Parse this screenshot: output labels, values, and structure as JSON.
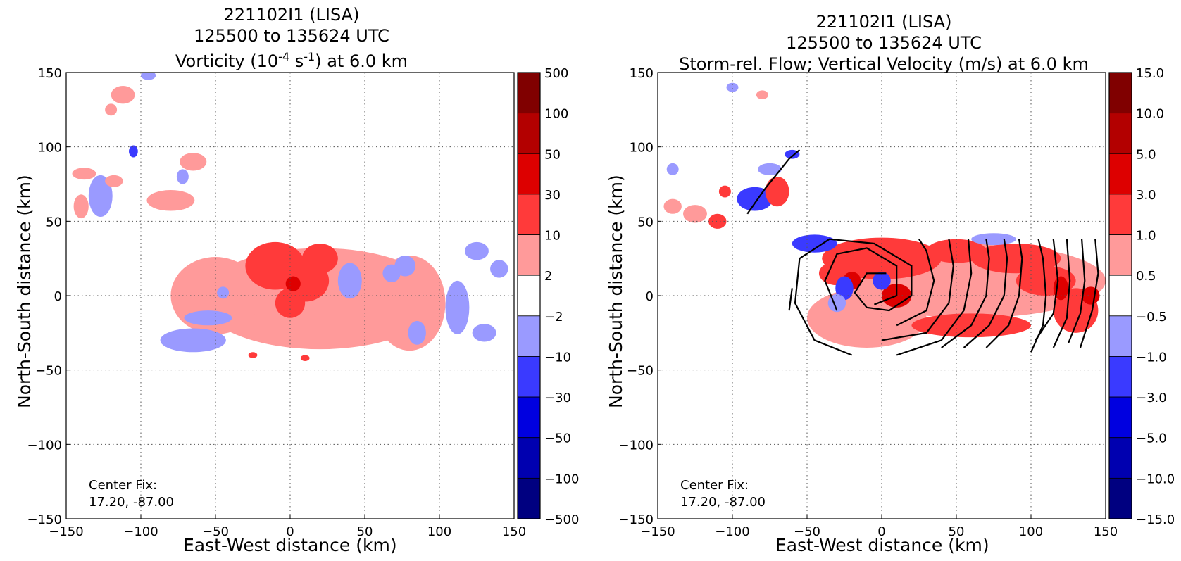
{
  "chart_data": [
    {
      "type": "heatmap",
      "title": [
        "221102I1 (LISA)",
        "125500 to 135624 UTC"
      ],
      "subtitle_parts": {
        "pre": "Vorticity (10",
        "exp1": "-4",
        "mid": " s",
        "exp2": "-1",
        "post": ") at 6.0 km"
      },
      "xlabel": "East-West distance (km)",
      "ylabel": "North-South distance (km)",
      "xlim": [
        -150,
        150
      ],
      "ylim": [
        -150,
        150
      ],
      "xticks": [
        "−150",
        "−100",
        "−50",
        "0",
        "50",
        "100",
        "150"
      ],
      "yticks": [
        "150",
        "100",
        "50",
        "0",
        "−50",
        "−100",
        "−150"
      ],
      "grid": true,
      "annotation": [
        "Center Fix:",
        "17.20, -87.00"
      ],
      "colorbar": {
        "levels": [
          "500",
          "100",
          "50",
          "30",
          "10",
          "2",
          "−2",
          "−10",
          "−30",
          "−50",
          "−100",
          "−500"
        ],
        "colors": [
          "#800000",
          "#b30000",
          "#dd0000",
          "#ff3a3a",
          "#ff9a9a",
          "#ffffff",
          "#9a9aff",
          "#3a3aff",
          "#0000e0",
          "#0000b0",
          "#000080"
        ]
      },
      "blobs": [
        {
          "x": -112,
          "y": 135,
          "rx": 8,
          "ry": 6,
          "c": 4
        },
        {
          "x": -95,
          "y": 148,
          "rx": 5,
          "ry": 3,
          "c": 6
        },
        {
          "x": -120,
          "y": 125,
          "rx": 4,
          "ry": 4,
          "c": 4
        },
        {
          "x": -105,
          "y": 97,
          "rx": 3,
          "ry": 4,
          "c": 7
        },
        {
          "x": -127,
          "y": 67,
          "rx": 8,
          "ry": 14,
          "c": 6
        },
        {
          "x": -140,
          "y": 60,
          "rx": 5,
          "ry": 8,
          "c": 4
        },
        {
          "x": -138,
          "y": 82,
          "rx": 8,
          "ry": 4,
          "c": 4
        },
        {
          "x": -118,
          "y": 77,
          "rx": 6,
          "ry": 4,
          "c": 4
        },
        {
          "x": -80,
          "y": 64,
          "rx": 16,
          "ry": 7,
          "c": 4
        },
        {
          "x": -65,
          "y": 90,
          "rx": 9,
          "ry": 6,
          "c": 4
        },
        {
          "x": -72,
          "y": 80,
          "rx": 4,
          "ry": 5,
          "c": 6
        },
        {
          "x": 20,
          "y": -2,
          "rx": 80,
          "ry": 34,
          "c": 4
        },
        {
          "x": -50,
          "y": 0,
          "rx": 30,
          "ry": 26,
          "c": 4
        },
        {
          "x": 80,
          "y": -5,
          "rx": 24,
          "ry": 32,
          "c": 4
        },
        {
          "x": -10,
          "y": 20,
          "rx": 20,
          "ry": 16,
          "c": 3
        },
        {
          "x": 10,
          "y": 10,
          "rx": 16,
          "ry": 14,
          "c": 3
        },
        {
          "x": 0,
          "y": -5,
          "rx": 10,
          "ry": 10,
          "c": 3
        },
        {
          "x": 20,
          "y": 25,
          "rx": 12,
          "ry": 10,
          "c": 3
        },
        {
          "x": 2,
          "y": 8,
          "rx": 5,
          "ry": 5,
          "c": 2
        },
        {
          "x": -65,
          "y": -30,
          "rx": 22,
          "ry": 8,
          "c": -1
        },
        {
          "x": -55,
          "y": -15,
          "rx": 16,
          "ry": 5,
          "c": -1
        },
        {
          "x": 40,
          "y": 10,
          "rx": 8,
          "ry": 12,
          "c": -1
        },
        {
          "x": 68,
          "y": 15,
          "rx": 6,
          "ry": 6,
          "c": -1
        },
        {
          "x": -45,
          "y": 2,
          "rx": 4,
          "ry": 4,
          "c": -1
        },
        {
          "x": 85,
          "y": -25,
          "rx": 6,
          "ry": 8,
          "c": -1
        },
        {
          "x": 112,
          "y": -8,
          "rx": 8,
          "ry": 18,
          "c": -1
        },
        {
          "x": 125,
          "y": 30,
          "rx": 8,
          "ry": 6,
          "c": -1
        },
        {
          "x": 140,
          "y": 18,
          "rx": 6,
          "ry": 6,
          "c": -1
        },
        {
          "x": 130,
          "y": -25,
          "rx": 8,
          "ry": 6,
          "c": -1
        },
        {
          "x": -70,
          "y": -30,
          "rx": 4,
          "ry": 4,
          "c": 6
        },
        {
          "x": 77,
          "y": 20,
          "rx": 7,
          "ry": 7,
          "c": 6
        },
        {
          "x": -25,
          "y": -40,
          "rx": 3,
          "ry": 2,
          "c": 3
        },
        {
          "x": 10,
          "y": -42,
          "rx": 3,
          "ry": 2,
          "c": 3
        }
      ]
    },
    {
      "type": "heatmap",
      "title": [
        "221102I1 (LISA)",
        "125500 to 135624 UTC",
        "Storm-rel. Flow; Vertical Velocity (m/s) at 6.0 km"
      ],
      "xlabel": "East-West distance (km)",
      "ylabel": "North-South distance (km)",
      "xlim": [
        -150,
        150
      ],
      "ylim": [
        -150,
        150
      ],
      "xticks": [
        "−150",
        "−100",
        "−50",
        "0",
        "50",
        "100",
        "150"
      ],
      "yticks": [
        "150",
        "100",
        "50",
        "0",
        "−50",
        "−100",
        "−150"
      ],
      "grid": true,
      "annotation": [
        "Center Fix:",
        "17.20, -87.00"
      ],
      "colorbar": {
        "levels": [
          "15.0",
          "10.0",
          "5.0",
          "3.0",
          "1.0",
          "0.5",
          "−0.5",
          "−1.0",
          "−3.0",
          "−5.0",
          "−10.0",
          "−15.0"
        ],
        "colors": [
          "#800000",
          "#b30000",
          "#dd0000",
          "#ff3a3a",
          "#ff9a9a",
          "#ffffff",
          "#9a9aff",
          "#3a3aff",
          "#0000e0",
          "#0000b0",
          "#000080"
        ]
      },
      "streamlines": true,
      "blobs": [
        {
          "x": 60,
          "y": 10,
          "rx": 90,
          "ry": 25,
          "c": 4
        },
        {
          "x": -10,
          "y": -15,
          "rx": 40,
          "ry": 20,
          "c": 4
        },
        {
          "x": 0,
          "y": 25,
          "rx": 40,
          "ry": 14,
          "c": 3
        },
        {
          "x": 50,
          "y": 30,
          "rx": 20,
          "ry": 8,
          "c": 3
        },
        {
          "x": 90,
          "y": 25,
          "rx": 30,
          "ry": 10,
          "c": 3
        },
        {
          "x": 110,
          "y": 10,
          "rx": 20,
          "ry": 10,
          "c": 3
        },
        {
          "x": 130,
          "y": -10,
          "rx": 15,
          "ry": 15,
          "c": 3
        },
        {
          "x": 60,
          "y": -20,
          "rx": 40,
          "ry": 8,
          "c": 3
        },
        {
          "x": -30,
          "y": 15,
          "rx": 12,
          "ry": 8,
          "c": 3
        },
        {
          "x": 10,
          "y": 0,
          "rx": 10,
          "ry": 8,
          "c": 2
        },
        {
          "x": 120,
          "y": 5,
          "rx": 5,
          "ry": 8,
          "c": 2
        },
        {
          "x": 140,
          "y": 0,
          "rx": 6,
          "ry": 6,
          "c": 2
        },
        {
          "x": -20,
          "y": 10,
          "rx": 6,
          "ry": 6,
          "c": 2
        },
        {
          "x": -25,
          "y": 5,
          "rx": 6,
          "ry": 8,
          "c": -2
        },
        {
          "x": 0,
          "y": 10,
          "rx": 6,
          "ry": 6,
          "c": -2
        },
        {
          "x": -85,
          "y": 65,
          "rx": 12,
          "ry": 8,
          "c": -2
        },
        {
          "x": -45,
          "y": 35,
          "rx": 15,
          "ry": 6,
          "c": -2
        },
        {
          "x": -75,
          "y": 85,
          "rx": 8,
          "ry": 4,
          "c": -1
        },
        {
          "x": -60,
          "y": 95,
          "rx": 5,
          "ry": 3,
          "c": -2
        },
        {
          "x": -110,
          "y": 50,
          "rx": 6,
          "ry": 5,
          "c": 3
        },
        {
          "x": -125,
          "y": 55,
          "rx": 8,
          "ry": 6,
          "c": 4
        },
        {
          "x": -140,
          "y": 60,
          "rx": 6,
          "ry": 5,
          "c": 4
        },
        {
          "x": -140,
          "y": 85,
          "rx": 4,
          "ry": 4,
          "c": -1
        },
        {
          "x": -100,
          "y": 140,
          "rx": 4,
          "ry": 3,
          "c": -1
        },
        {
          "x": -70,
          "y": 70,
          "rx": 8,
          "ry": 10,
          "c": 3
        },
        {
          "x": -105,
          "y": 70,
          "rx": 4,
          "ry": 4,
          "c": 3
        },
        {
          "x": -80,
          "y": 135,
          "rx": 4,
          "ry": 3,
          "c": 4
        },
        {
          "x": -30,
          "y": -5,
          "rx": 6,
          "ry": 6,
          "c": -1
        },
        {
          "x": 75,
          "y": 38,
          "rx": 15,
          "ry": 4,
          "c": -1
        }
      ]
    }
  ]
}
